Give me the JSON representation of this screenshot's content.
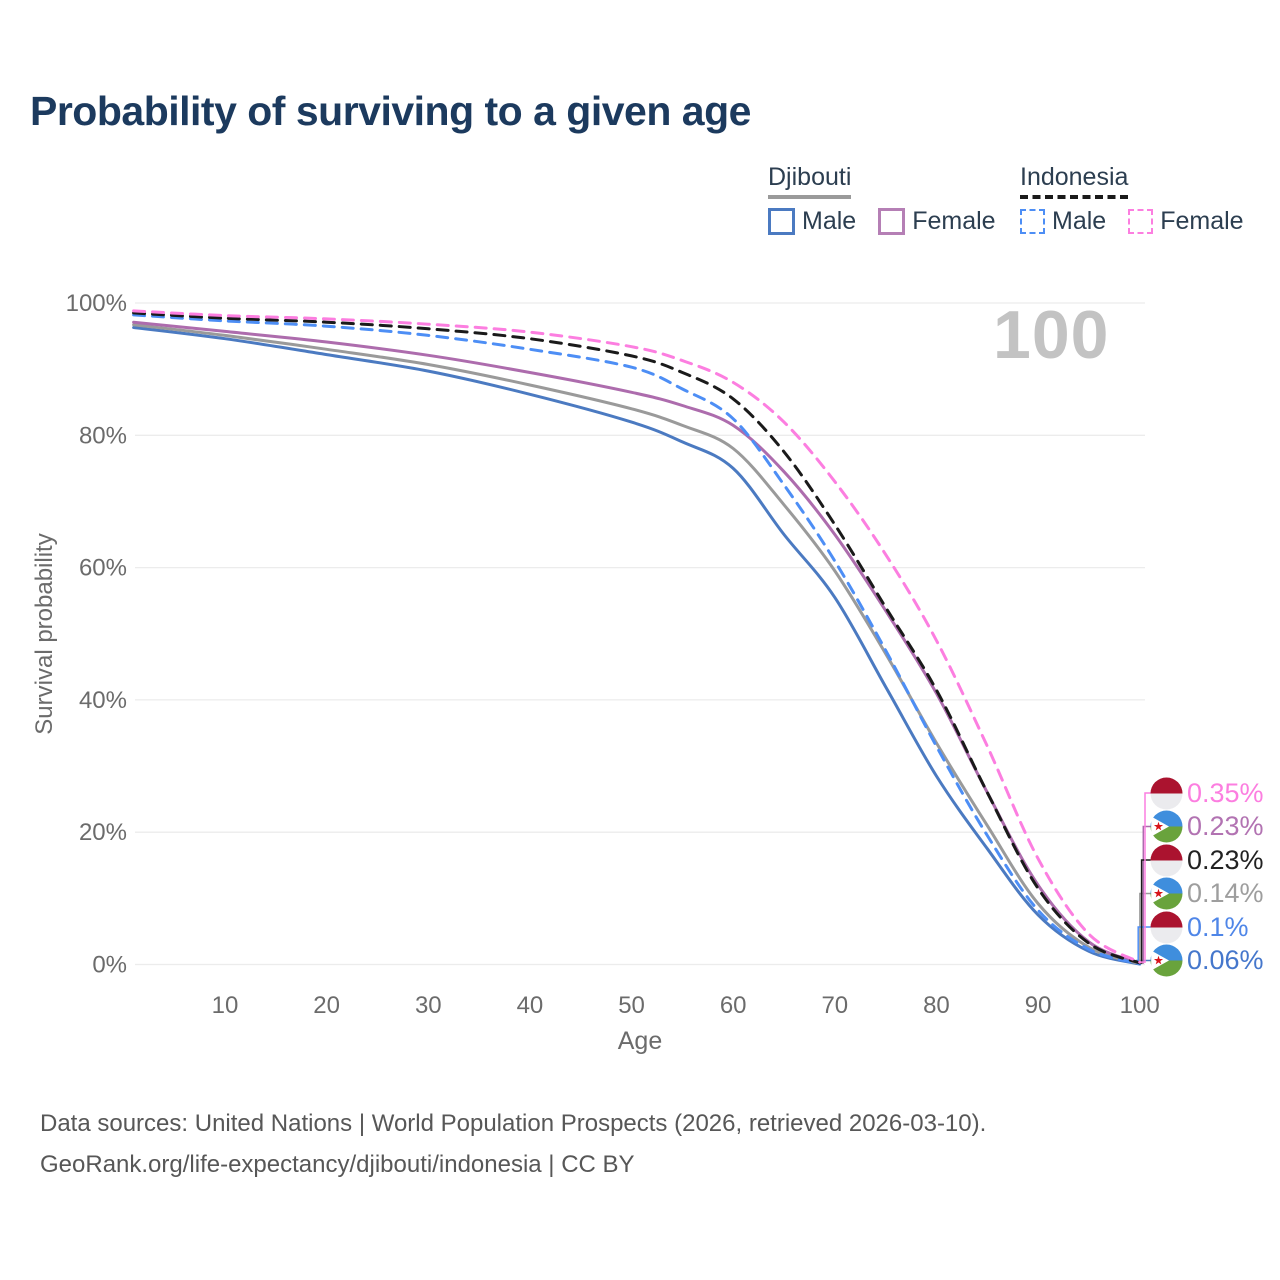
{
  "title": "Probability of surviving to a given age",
  "watermark": "100",
  "legend": {
    "groups": [
      {
        "name": "Djibouti",
        "line_style": "solid",
        "underline_color": "#9a9a9a",
        "items": [
          {
            "label": "Male",
            "color": "#4b7ac1"
          },
          {
            "label": "Female",
            "color": "#b57fb5"
          }
        ]
      },
      {
        "name": "Indonesia",
        "line_style": "dashed",
        "underline_color": "#1a1a1a",
        "items": [
          {
            "label": "Male",
            "color": "#4d8ef5"
          },
          {
            "label": "Female",
            "color": "#fc7ee0"
          }
        ]
      }
    ]
  },
  "axes": {
    "x_title": "Age",
    "y_title": "Survival probability",
    "x_ticks": [
      "10",
      "20",
      "30",
      "40",
      "50",
      "60",
      "70",
      "80",
      "90",
      "100"
    ],
    "y_ticks": [
      "0%",
      "20%",
      "40%",
      "60%",
      "80%",
      "100%"
    ]
  },
  "chart_data": {
    "type": "line",
    "title": "Probability of surviving to a given age",
    "xlabel": "Age",
    "ylabel": "Survival probability",
    "xlim": [
      1,
      100
    ],
    "ylim": [
      0,
      100
    ],
    "grid": "horizontal",
    "x": [
      1,
      10,
      20,
      30,
      40,
      50,
      55,
      60,
      65,
      70,
      75,
      80,
      85,
      90,
      95,
      100
    ],
    "series": [
      {
        "name": "Djibouti Male",
        "country": "Djibouti",
        "sex": "Male",
        "color": "#4b7ac1",
        "dash": false,
        "end_label": "0.06%",
        "end_row": 5,
        "values": [
          96.3,
          94.6,
          92.2,
          89.7,
          86.2,
          82.0,
          79.0,
          75.0,
          65.0,
          55.5,
          42.0,
          28.5,
          17.5,
          7.5,
          2.0,
          0.06
        ]
      },
      {
        "name": "Djibouti Both sexes",
        "country": "Djibouti",
        "sex": "Both",
        "color": "#9a9a9a",
        "dash": false,
        "end_label": "0.14%",
        "end_row": 3,
        "values": [
          96.7,
          95.1,
          93.0,
          90.7,
          87.6,
          84.0,
          81.5,
          78.0,
          69.5,
          59.5,
          47.0,
          33.5,
          21.0,
          9.2,
          2.6,
          0.14
        ]
      },
      {
        "name": "Djibouti Female",
        "country": "Djibouti",
        "sex": "Female",
        "color": "#ad6cad",
        "dash": false,
        "end_label": "0.23%",
        "end_row": 1,
        "values": [
          97.1,
          95.7,
          94.1,
          92.1,
          89.5,
          86.5,
          84.5,
          81.5,
          74.5,
          65.0,
          53.5,
          41.0,
          26.0,
          12.0,
          3.4,
          0.23
        ]
      },
      {
        "name": "Indonesia Male",
        "country": "Indonesia",
        "sex": "Male",
        "color": "#4d8ef5",
        "dash": true,
        "end_label": "0.1%",
        "end_row": 4,
        "values": [
          98.2,
          97.3,
          96.5,
          95.1,
          93.0,
          90.3,
          87.0,
          82.5,
          72.5,
          61.0,
          47.5,
          33.0,
          19.5,
          8.2,
          2.3,
          0.1
        ]
      },
      {
        "name": "Indonesia Both sexes",
        "country": "Indonesia",
        "sex": "Both",
        "color": "#1a1a1a",
        "dash": true,
        "end_label": "0.23%",
        "end_row": 2,
        "values": [
          98.5,
          97.7,
          97.1,
          96.1,
          94.6,
          92.0,
          89.5,
          85.5,
          77.5,
          66.5,
          54.0,
          41.5,
          26.0,
          11.5,
          3.2,
          0.23
        ]
      },
      {
        "name": "Indonesia Female",
        "country": "Indonesia",
        "sex": "Female",
        "color": "#fc7ee0",
        "dash": true,
        "end_label": "0.35%",
        "end_row": 0,
        "values": [
          98.8,
          98.1,
          97.6,
          96.8,
          95.6,
          93.4,
          91.3,
          88.0,
          82.0,
          73.0,
          62.0,
          49.0,
          33.0,
          16.0,
          4.6,
          0.35
        ]
      }
    ]
  },
  "end_labels": [
    {
      "value": "0.35%",
      "flag": "indonesia",
      "color": "#fc7ee0"
    },
    {
      "value": "0.23%",
      "flag": "djibouti",
      "color": "#b273b2"
    },
    {
      "value": "0.23%",
      "flag": "indonesia",
      "color": "#222222"
    },
    {
      "value": "0.14%",
      "flag": "djibouti",
      "color": "#9e9e9e"
    },
    {
      "value": "0.1%",
      "flag": "indonesia",
      "color": "#4f86e8"
    },
    {
      "value": "0.06%",
      "flag": "djibouti",
      "color": "#4577cc"
    }
  ],
  "footer": {
    "line1": "Data sources: United Nations | World Population Prospects (2026, retrieved 2026-03-10).",
    "line2": "GeoRank.org/life-expectancy/djibouti/indonesia | CC BY"
  }
}
